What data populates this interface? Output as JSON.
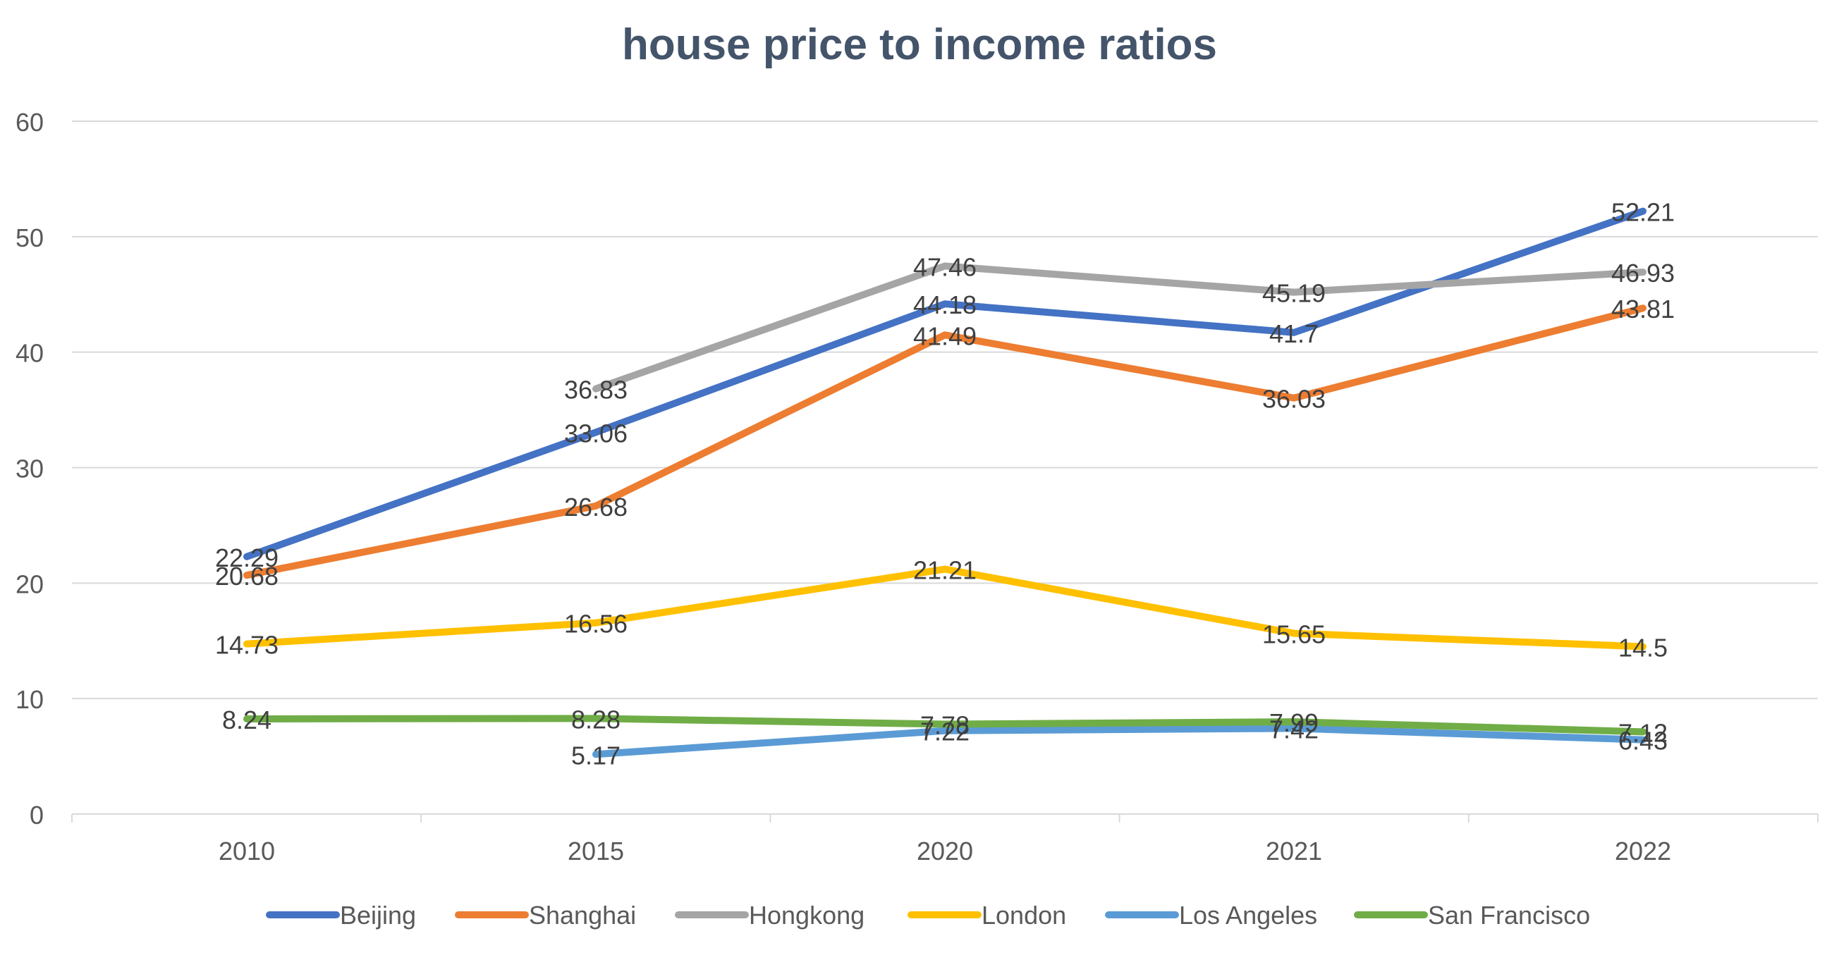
{
  "chart_data": {
    "type": "line",
    "title": "house price to income ratios",
    "xlabel": "",
    "ylabel": "",
    "categories": [
      "2010",
      "2015",
      "2020",
      "2021",
      "2022"
    ],
    "ylim": [
      0,
      60
    ],
    "yticks": [
      0,
      10,
      20,
      30,
      40,
      50,
      60
    ],
    "grid": true,
    "legend_position": "bottom",
    "series": [
      {
        "name": "Beijing",
        "color": "#4472c4",
        "values": [
          22.29,
          33.06,
          44.18,
          41.7,
          52.21
        ]
      },
      {
        "name": "Shanghai",
        "color": "#ed7d31",
        "values": [
          20.68,
          26.68,
          41.49,
          36.03,
          43.81
        ]
      },
      {
        "name": "Hongkong",
        "color": "#a5a5a5",
        "values": [
          null,
          36.83,
          47.46,
          45.19,
          46.93
        ]
      },
      {
        "name": "London",
        "color": "#ffc000",
        "values": [
          14.73,
          16.56,
          21.21,
          15.65,
          14.5
        ]
      },
      {
        "name": "Los Angeles",
        "color": "#5b9bd5",
        "values": [
          null,
          5.17,
          7.22,
          7.42,
          6.43
        ]
      },
      {
        "name": "San Francisco",
        "color": "#70ad47",
        "values": [
          8.24,
          8.28,
          7.78,
          7.99,
          7.12
        ]
      }
    ]
  }
}
